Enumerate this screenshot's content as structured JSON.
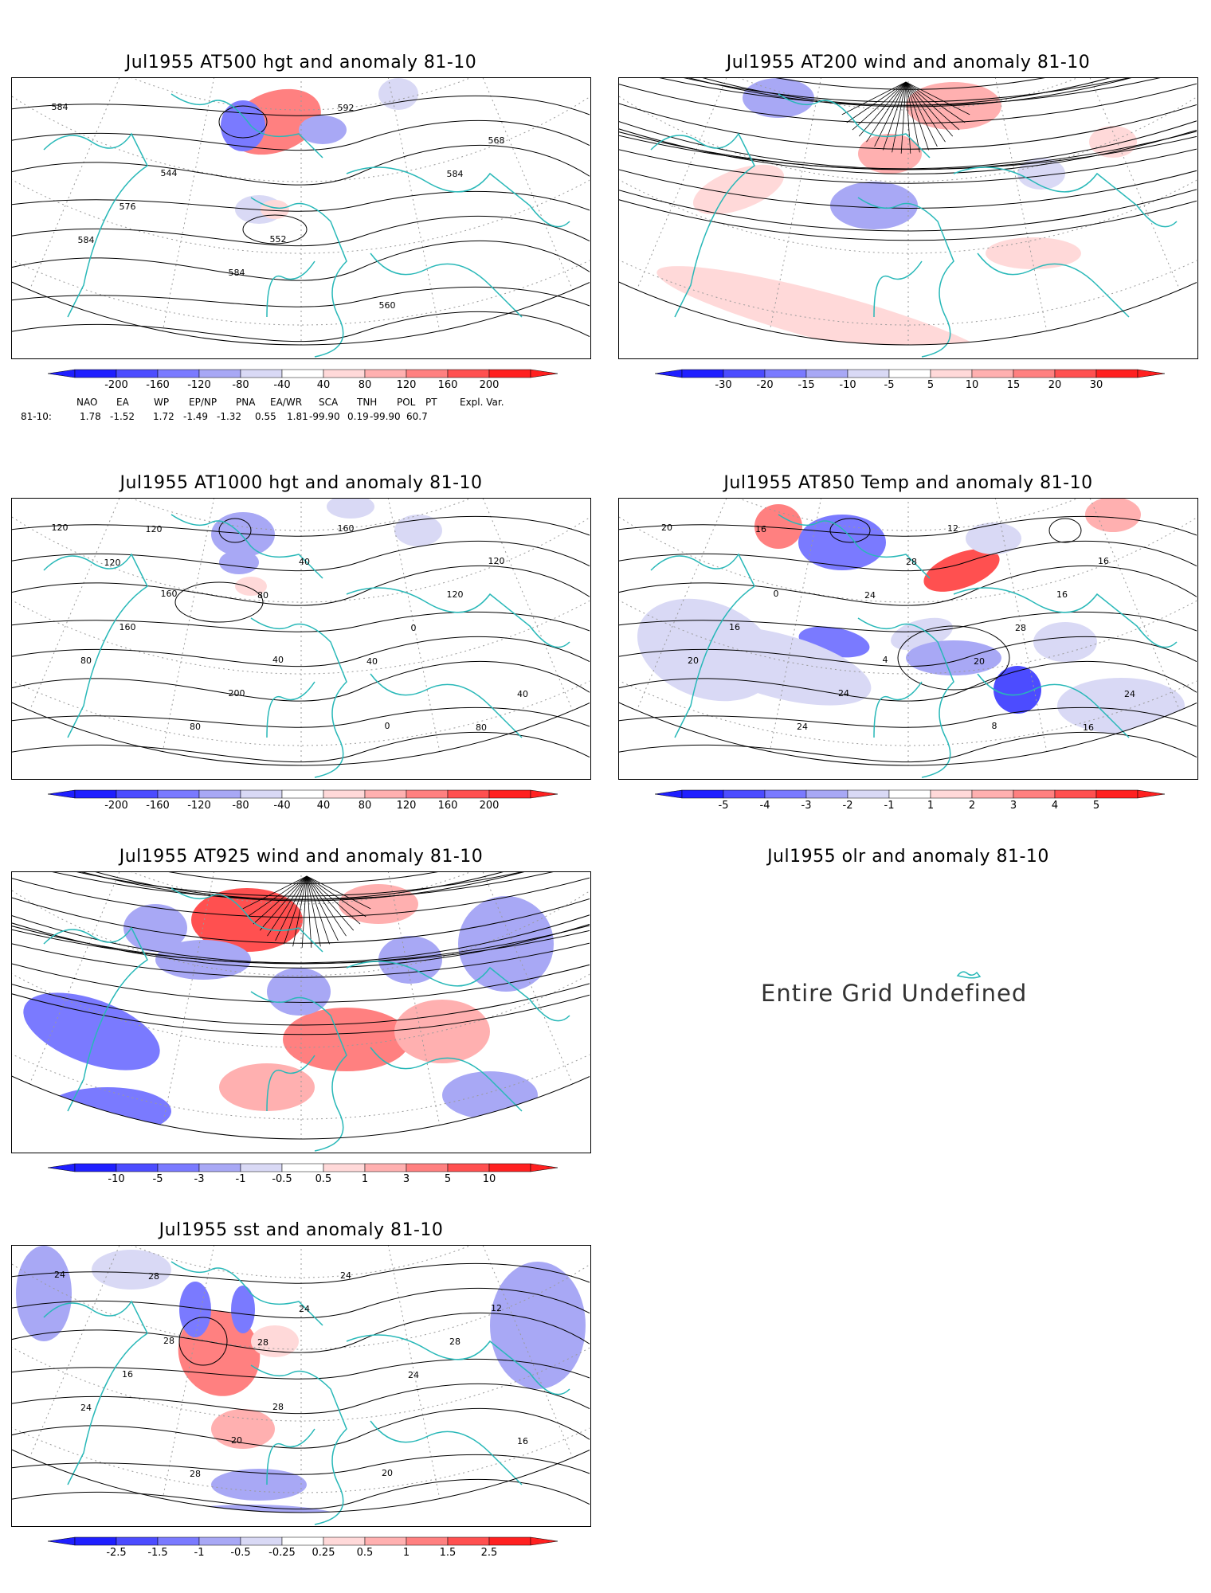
{
  "panels": [
    {
      "id": "p1",
      "title": "Jul1955 AT500 hgt and anomaly 81-10",
      "kind": "hgt500",
      "contour_labels": [
        "584",
        "544",
        "552",
        "560",
        "568",
        "576",
        "584",
        "592",
        "584",
        "584"
      ],
      "colorbar": {
        "ticks": [
          "-200",
          "-160",
          "-120",
          "-80",
          "-40",
          "40",
          "80",
          "120",
          "160",
          "200"
        ]
      }
    },
    {
      "id": "p2",
      "title": "Jul1955 AT200 wind and anomaly 81-10",
      "kind": "wind200",
      "contour_labels": [],
      "colorbar": {
        "ticks": [
          "-30",
          "-20",
          "-15",
          "-10",
          "-5",
          "5",
          "10",
          "15",
          "20",
          "30"
        ]
      }
    },
    {
      "id": "p3",
      "title": "Jul1955 AT1000 hgt and anomaly 81-10",
      "kind": "hgt1000",
      "contour_labels": [
        "120",
        "160",
        "40",
        "0",
        "120",
        "160",
        "200",
        "160",
        "120",
        "80",
        "80",
        "40",
        "0",
        "40",
        "120",
        "80",
        "40",
        "80",
        "120"
      ],
      "colorbar": {
        "ticks": [
          "-200",
          "-160",
          "-120",
          "-80",
          "-40",
          "40",
          "80",
          "120",
          "160",
          "200"
        ]
      }
    },
    {
      "id": "p4",
      "title": "Jul1955 AT850 Temp and anomaly 81-10",
      "kind": "temp850",
      "contour_labels": [
        "20",
        "0",
        "4",
        "8",
        "16",
        "16",
        "24",
        "12",
        "16",
        "20",
        "24",
        "28",
        "28",
        "24",
        "16",
        "24",
        "20",
        "16"
      ],
      "colorbar": {
        "ticks": [
          "-5",
          "-4",
          "-3",
          "-2",
          "-1",
          "1",
          "2",
          "3",
          "4",
          "5"
        ]
      }
    },
    {
      "id": "p5",
      "title": "Jul1955 AT925 wind and anomaly 81-10",
      "kind": "wind925",
      "contour_labels": [],
      "colorbar": {
        "ticks": [
          "-10",
          "-5",
          "-3",
          "-1",
          "-0.5",
          "0.5",
          "1",
          "3",
          "5",
          "10"
        ]
      }
    },
    {
      "id": "p6",
      "title": "Jul1955 olr and anomaly 81-10",
      "kind": "olr",
      "undefined_text": "Entire Grid Undefined"
    },
    {
      "id": "p7",
      "title": "Jul1955 sst and anomaly 81-10",
      "kind": "sst",
      "contour_labels": [
        "24",
        "28",
        "28",
        "20",
        "12",
        "16",
        "20",
        "24",
        "28",
        "24",
        "28",
        "24",
        "24",
        "16",
        "28",
        "28"
      ],
      "colorbar": {
        "ticks": [
          "-2.5",
          "-1.5",
          "-1",
          "-0.5",
          "-0.25",
          "0.25",
          "0.5",
          "1",
          "1.5",
          "2.5"
        ]
      }
    }
  ],
  "teleconnections": {
    "header": [
      "NAO",
      "EA",
      "WP",
      "EP/NP",
      "PNA",
      "EA/WR",
      "SCA",
      "TNH",
      "POL",
      "PT",
      "Expl. Var."
    ],
    "row_label": "81-10:",
    "values": [
      "1.78",
      "-1.52",
      "1.72",
      "-1.49",
      "-1.32",
      "0.55",
      "1.81",
      "-99.90",
      "0.19",
      "-99.90",
      "60.7"
    ]
  },
  "colors": {
    "blue": [
      "#1f1fff",
      "#4c4cff",
      "#7a7aff",
      "#a8a8f5",
      "#d9d9f5"
    ],
    "red": [
      "#ffd9d9",
      "#ffb0b0",
      "#ff8080",
      "#ff5050",
      "#ff2020"
    ],
    "coast": "#28b8b8",
    "contour": "#000000",
    "grid": "#9a9a9a"
  }
}
